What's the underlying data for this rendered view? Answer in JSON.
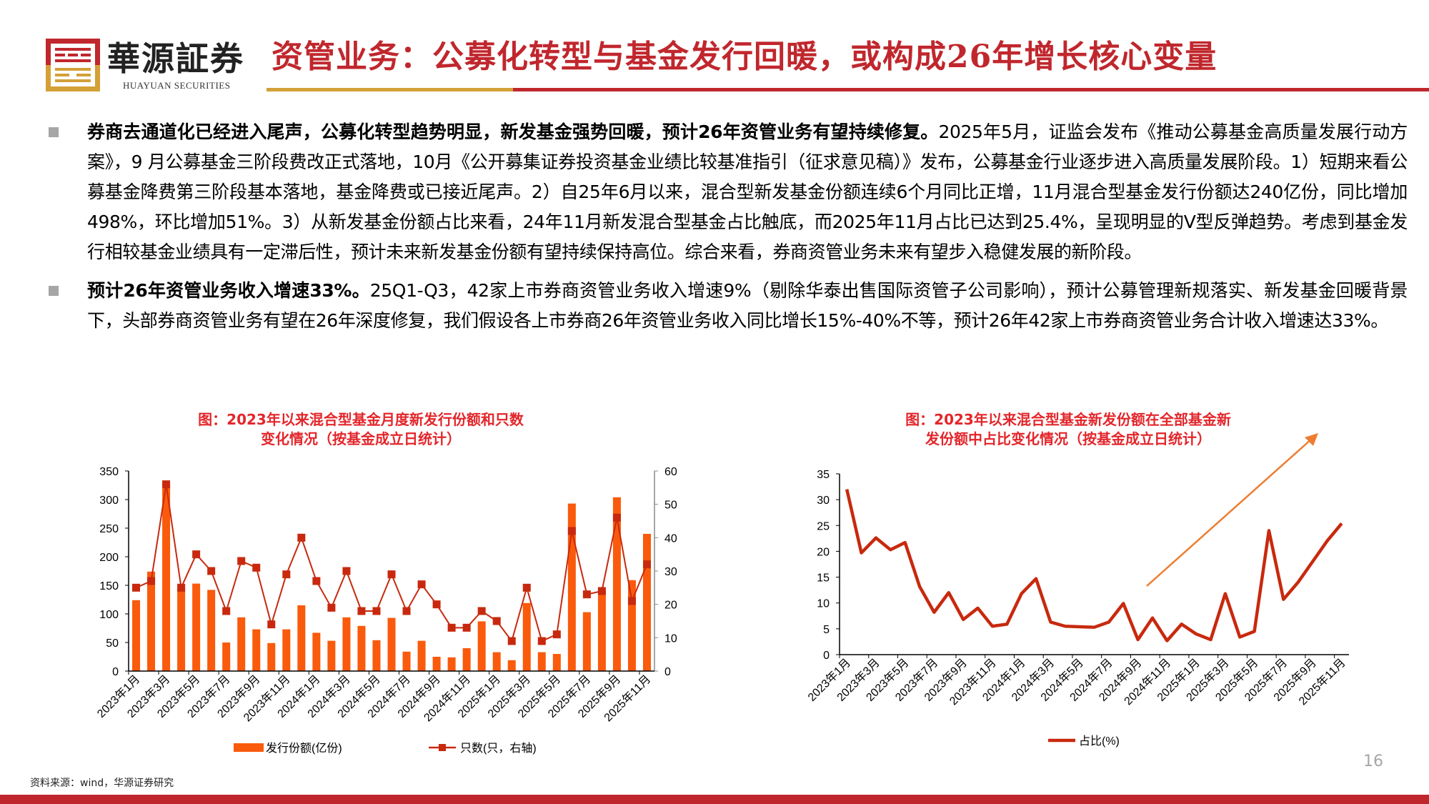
{
  "header": {
    "brand_name": "華源証券",
    "brand_sub": "HUAYUAN SECURITIES",
    "title": "资管业务：公募化转型与基金发行回暖，或构成26年增长核心变量"
  },
  "colors": {
    "brand_red": "#c0272d",
    "brand_gold": "#d4a038",
    "bar": "#fa5a0c",
    "line": "#c8290e",
    "arrow": "#ed7d31"
  },
  "bullets": [
    {
      "bold": "券商去通道化已经进入尾声，公募化转型趋势明显，新发基金强势回暖，预计26年资管业务有望持续修复。",
      "text": "2025年5月，证监会发布《推动公募基金高质量发展行动方案》，9 月公募基金三阶段费改正式落地，10月《公开募集证券投资基金业绩比较基准指引（征求意见稿）》发布，公募基金行业逐步进入高质量发展阶段。1）短期来看公募基金降费第三阶段基本落地，基金降费或已接近尾声。2）自25年6月以来，混合型新发基金份额连续6个月同比正增，11月混合型基金发行份额达240亿份，同比增加498%，环比增加51%。3）从新发基金份额占比来看，24年11月新发混合型基金占比触底，而2025年11月占比已达到25.4%，呈现明显的V型反弹趋势。考虑到基金发行相较基金业绩具有一定滞后性，预计未来新发基金份额有望持续保持高位。综合来看，券商资管业务未来有望步入稳健发展的新阶段。"
    },
    {
      "bold": "预计26年资管业务收入增速33%。",
      "text": "25Q1-Q3，42家上市券商资管业务收入增速9%（剔除华泰出售国际资管子公司影响），预计公募管理新规落实、新发基金回暖背景下，头部券商资管业务有望在26年深度修复，我们假设各上市券商26年资管业务收入同比增长15%-40%不等，预计26年42家上市券商资管业务合计收入增速达33%。"
    }
  ],
  "chart_data": [
    {
      "type": "bar+line",
      "title_line1": "图：2023年以来混合型基金月度新发行份额和只数",
      "title_line2": "变化情况（按基金成立日统计）",
      "x_tick_labels": [
        "2023年1月",
        "2023年3月",
        "2023年5月",
        "2023年7月",
        "2023年9月",
        "2023年11月",
        "2024年1月",
        "2024年3月",
        "2024年5月",
        "2024年7月",
        "2024年9月",
        "2024年11月",
        "2025年1月",
        "2025年3月",
        "2025年5月",
        "2025年7月",
        "2025年9月",
        "2025年11月"
      ],
      "x_range": [
        "2023年1月",
        "2025年11月"
      ],
      "y_left": {
        "ticks": [
          "0",
          "50",
          "100",
          "150",
          "200",
          "250",
          "300",
          "350"
        ],
        "lim": [
          0,
          350
        ]
      },
      "y_right": {
        "ticks": [
          "0",
          "10",
          "20",
          "30",
          "40",
          "50",
          "60"
        ],
        "lim": [
          0,
          60
        ]
      },
      "series": [
        {
          "name": "发行份额(亿份)",
          "type": "bar",
          "axis": "left",
          "values": [
            124,
            174,
            328,
            145,
            153,
            142,
            50,
            94,
            73,
            49,
            73,
            115,
            67,
            53,
            94,
            79,
            54,
            93,
            34,
            53,
            25,
            24,
            40,
            87,
            33,
            19,
            119,
            33,
            30,
            293,
            103,
            140,
            304,
            159,
            240
          ]
        },
        {
          "name": "只数(只，右轴)",
          "type": "line",
          "axis": "right",
          "values": [
            25,
            27,
            56,
            25,
            35,
            30,
            18,
            33,
            31,
            14,
            29,
            40,
            27,
            19,
            30,
            18,
            18,
            29,
            18,
            26,
            20,
            13,
            13,
            18,
            15,
            9,
            25,
            9,
            11,
            42,
            23,
            24,
            46,
            21,
            32
          ]
        }
      ],
      "legend_position": "bottom"
    },
    {
      "type": "line",
      "title_line1": "图：2023年以来混合型基金新发份额在全部基金新",
      "title_line2": "发份额中占比变化情况（按基金成立日统计）",
      "x_tick_labels": [
        "2023年1月",
        "2023年3月",
        "2023年5月",
        "2023年7月",
        "2023年9月",
        "2023年11月",
        "2024年1月",
        "2024年3月",
        "2024年5月",
        "2024年7月",
        "2024年9月",
        "2024年11月",
        "2025年1月",
        "2025年3月",
        "2025年5月",
        "2025年7月",
        "2025年9月",
        "2025年11月"
      ],
      "y": {
        "ticks": [
          "0",
          "5",
          "10",
          "15",
          "20",
          "25",
          "30",
          "35"
        ],
        "lim": [
          0,
          35
        ]
      },
      "series": [
        {
          "name": "占比(%)",
          "values": [
            32,
            19.7,
            22.6,
            20.3,
            21.7,
            13.2,
            8.2,
            12,
            6.8,
            9,
            5.5,
            5.9,
            11.8,
            14.7,
            6.3,
            5.5,
            5.4,
            5.3,
            6.3,
            9.9,
            2.9,
            7.1,
            2.7,
            5.9,
            4,
            2.9,
            11.8,
            3.4,
            4.5,
            24,
            10.7,
            14,
            18,
            22,
            25.4
          ]
        }
      ],
      "annotation": "upward-trend-arrow",
      "legend_position": "bottom"
    }
  ],
  "footer": {
    "source": "资料来源：wind，华源证券研究",
    "page_number": "16"
  }
}
